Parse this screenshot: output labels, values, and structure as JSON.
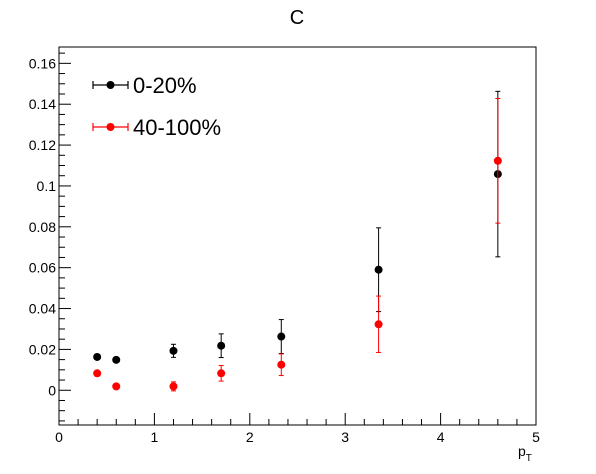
{
  "chart_data": {
    "type": "scatter",
    "title": "C",
    "xlabel": "p",
    "xlabel_sub": "T",
    "ylabel": "",
    "xlim": [
      0,
      5
    ],
    "ylim": [
      -0.017,
      0.168
    ],
    "x_ticks": [
      0,
      1,
      2,
      3,
      4,
      5
    ],
    "x_tick_labels": [
      "0",
      "1",
      "2",
      "3",
      "4",
      "5"
    ],
    "y_ticks": [
      0,
      0.02,
      0.04,
      0.06,
      0.08,
      0.1,
      0.12,
      0.14,
      0.16
    ],
    "y_tick_labels": [
      "0",
      "0.02",
      "0.04",
      "0.06",
      "0.08",
      "0.1",
      "0.12",
      "0.14",
      "0.16"
    ],
    "grid": false,
    "legend_position": "top-left",
    "series": [
      {
        "name": "0-20%",
        "color": "#000000",
        "x": [
          0.4,
          0.6,
          1.2,
          1.7,
          2.33,
          3.35,
          4.6
        ],
        "y": [
          0.0163,
          0.0149,
          0.0193,
          0.0218,
          0.0263,
          0.059,
          0.1058
        ],
        "yerr": [
          0.0012,
          0.0012,
          0.0032,
          0.0058,
          0.0083,
          0.0205,
          0.0405
        ]
      },
      {
        "name": "40-100%",
        "color": "#ff0000",
        "x": [
          0.4,
          0.6,
          1.2,
          1.7,
          2.33,
          3.35,
          4.6
        ],
        "y": [
          0.0083,
          0.0019,
          0.0019,
          0.0083,
          0.0125,
          0.0323,
          0.1123
        ],
        "yerr": [
          0.0008,
          0.0008,
          0.0022,
          0.0038,
          0.0053,
          0.0138,
          0.0305
        ]
      }
    ]
  }
}
